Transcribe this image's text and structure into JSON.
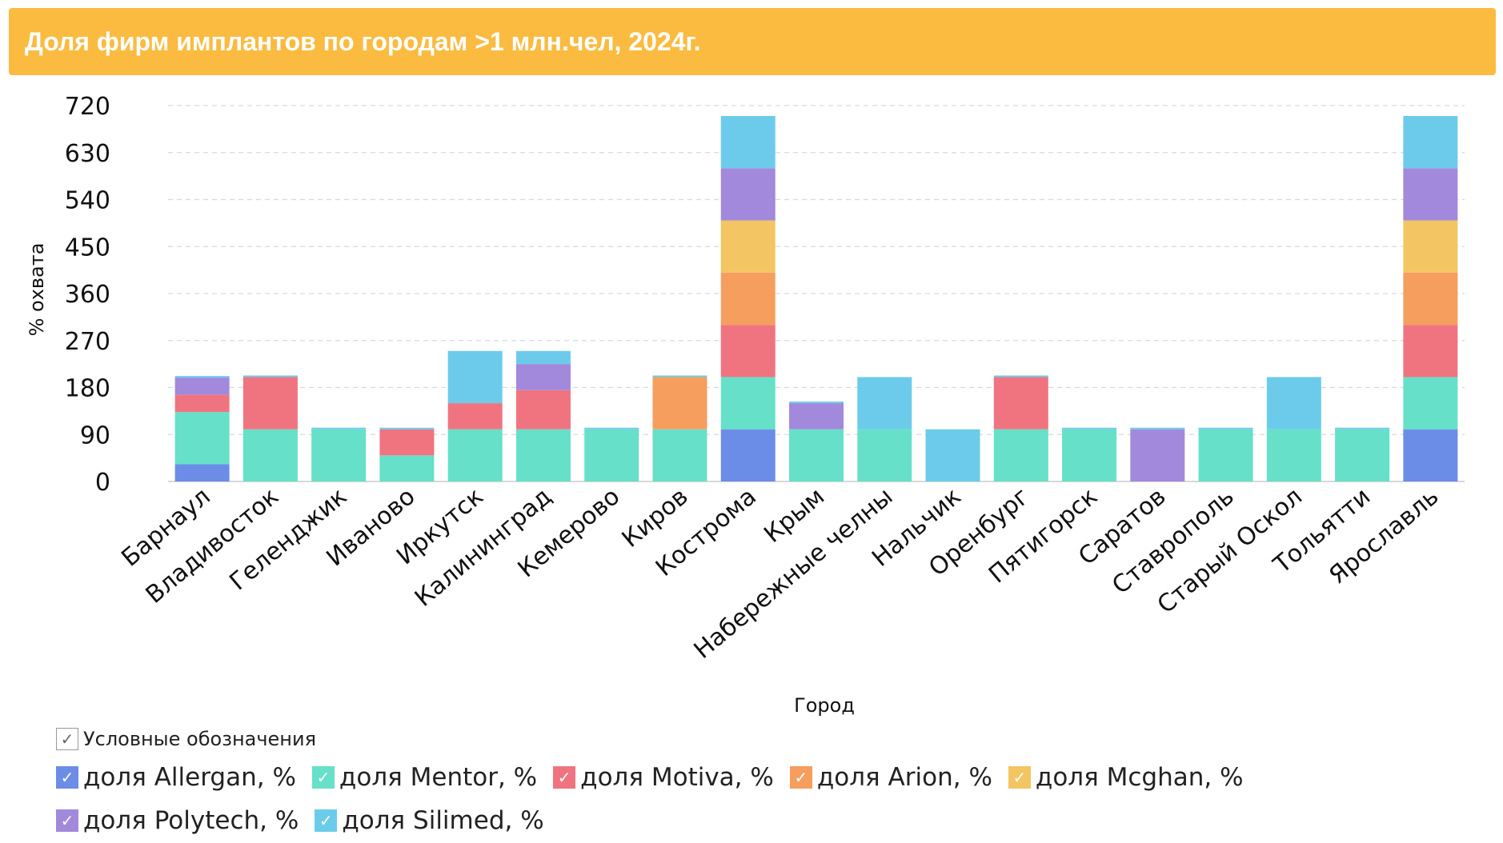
{
  "header": {
    "title": "Доля фирм имплантов по городам >1 млн.чел, 2024г."
  },
  "legend": {
    "title": "Условные обозначения",
    "check_glyph": "✓"
  },
  "colors": {
    "header_bg": "#fbbb40",
    "grid": "#d9d9d9",
    "axis": "#cccccc"
  },
  "chart_data": {
    "type": "bar",
    "stacked": true,
    "xlabel": "Город",
    "ylabel": "% охвата",
    "ylim": [
      0,
      720
    ],
    "yticks": [
      0,
      90,
      180,
      270,
      360,
      450,
      540,
      630,
      720
    ],
    "grid": true,
    "legend_position": "bottom",
    "categories": [
      "Барнаул",
      "Владивосток",
      "Геленджик",
      "Иваново",
      "Иркутск",
      "Калининград",
      "Кемерово",
      "Киров",
      "Кострома",
      "Крым",
      "Набережные челны",
      "Нальчик",
      "Оренбург",
      "Пятигорск",
      "Саратов",
      "Ставрополь",
      "Старый Оскол",
      "Тольятти",
      "Ярославль"
    ],
    "series": [
      {
        "name": "доля Allergan, %",
        "color": "#6b8de8",
        "values": [
          33,
          0,
          0,
          0,
          0,
          0,
          0,
          0,
          100,
          0,
          0,
          0,
          0,
          0,
          0,
          0,
          0,
          0,
          100
        ]
      },
      {
        "name": "доля Mentor, %",
        "color": "#66e0c8",
        "values": [
          100,
          100,
          100,
          50,
          100,
          100,
          100,
          100,
          100,
          100,
          100,
          0,
          100,
          100,
          0,
          100,
          100,
          100,
          100
        ]
      },
      {
        "name": "доля Motiva, %",
        "color": "#f07480",
        "values": [
          33,
          100,
          0,
          50,
          50,
          75,
          0,
          0,
          100,
          0,
          0,
          0,
          100,
          0,
          0,
          0,
          0,
          0,
          100
        ]
      },
      {
        "name": "доля Arion, %",
        "color": "#f59e5e",
        "values": [
          0,
          0,
          0,
          0,
          0,
          0,
          0,
          100,
          100,
          0,
          0,
          0,
          0,
          0,
          0,
          0,
          0,
          0,
          100
        ]
      },
      {
        "name": "доля Mcghan, %",
        "color": "#f3c563",
        "values": [
          0,
          0,
          0,
          0,
          0,
          0,
          0,
          0,
          100,
          0,
          0,
          0,
          0,
          0,
          0,
          0,
          0,
          0,
          100
        ]
      },
      {
        "name": "доля Polytech, %",
        "color": "#a289dc",
        "values": [
          33,
          0,
          0,
          0,
          0,
          50,
          0,
          0,
          100,
          50,
          0,
          0,
          0,
          0,
          100,
          0,
          0,
          0,
          100
        ]
      },
      {
        "name": "доля Silimed, %",
        "color": "#6ccbea",
        "values": [
          3,
          3,
          3,
          3,
          100,
          25,
          3,
          3,
          100,
          3,
          100,
          100,
          3,
          3,
          3,
          3,
          100,
          3,
          100
        ]
      }
    ]
  }
}
